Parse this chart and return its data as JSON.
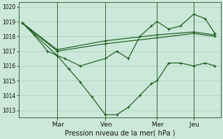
{
  "background_color": "#cce8da",
  "grid_color": "#aacfbc",
  "line_color": "#1a5c1a",
  "marker_color": "#1a5c1a",
  "xlabel": "Pression niveau de la mer( hPa )",
  "ylim": [
    1012.5,
    1020.3
  ],
  "yticks": [
    1013,
    1014,
    1015,
    1016,
    1017,
    1018,
    1019,
    1020
  ],
  "xtick_labels": [
    " Mar",
    " Ven",
    " Mer",
    " Jeu"
  ],
  "vline_x": [
    0.18,
    0.43,
    0.7,
    0.89
  ],
  "series1_x": [
    0.0,
    0.06,
    0.13,
    0.18,
    0.24,
    0.3,
    0.36,
    0.43,
    0.49,
    0.55,
    0.61,
    0.67,
    0.7,
    0.76,
    0.82,
    0.89,
    0.95,
    1.0
  ],
  "series1_y": [
    1018.9,
    1018.1,
    1017.0,
    1016.7,
    1015.8,
    1014.9,
    1013.9,
    1012.7,
    1012.7,
    1013.2,
    1014.0,
    1014.8,
    1015.0,
    1016.2,
    1016.2,
    1016.0,
    1016.2,
    1016.0
  ],
  "series2_x": [
    0.0,
    0.18,
    0.22,
    0.3,
    0.43,
    0.49,
    0.55,
    0.61,
    0.67,
    0.7,
    0.76,
    0.82,
    0.89,
    0.95,
    1.0
  ],
  "series2_y": [
    1018.9,
    1016.7,
    1016.5,
    1016.0,
    1016.5,
    1017.0,
    1016.5,
    1018.0,
    1018.7,
    1019.0,
    1018.5,
    1018.7,
    1019.5,
    1019.2,
    1018.2
  ],
  "series3_x": [
    0.0,
    0.18,
    0.43,
    0.7,
    0.89,
    1.0
  ],
  "series3_y": [
    1018.9,
    1017.0,
    1017.5,
    1017.9,
    1018.2,
    1018.0
  ],
  "series4_x": [
    0.0,
    0.18,
    0.43,
    0.7,
    0.89,
    1.0
  ],
  "series4_y": [
    1018.9,
    1017.1,
    1017.7,
    1018.1,
    1018.3,
    1018.1
  ]
}
